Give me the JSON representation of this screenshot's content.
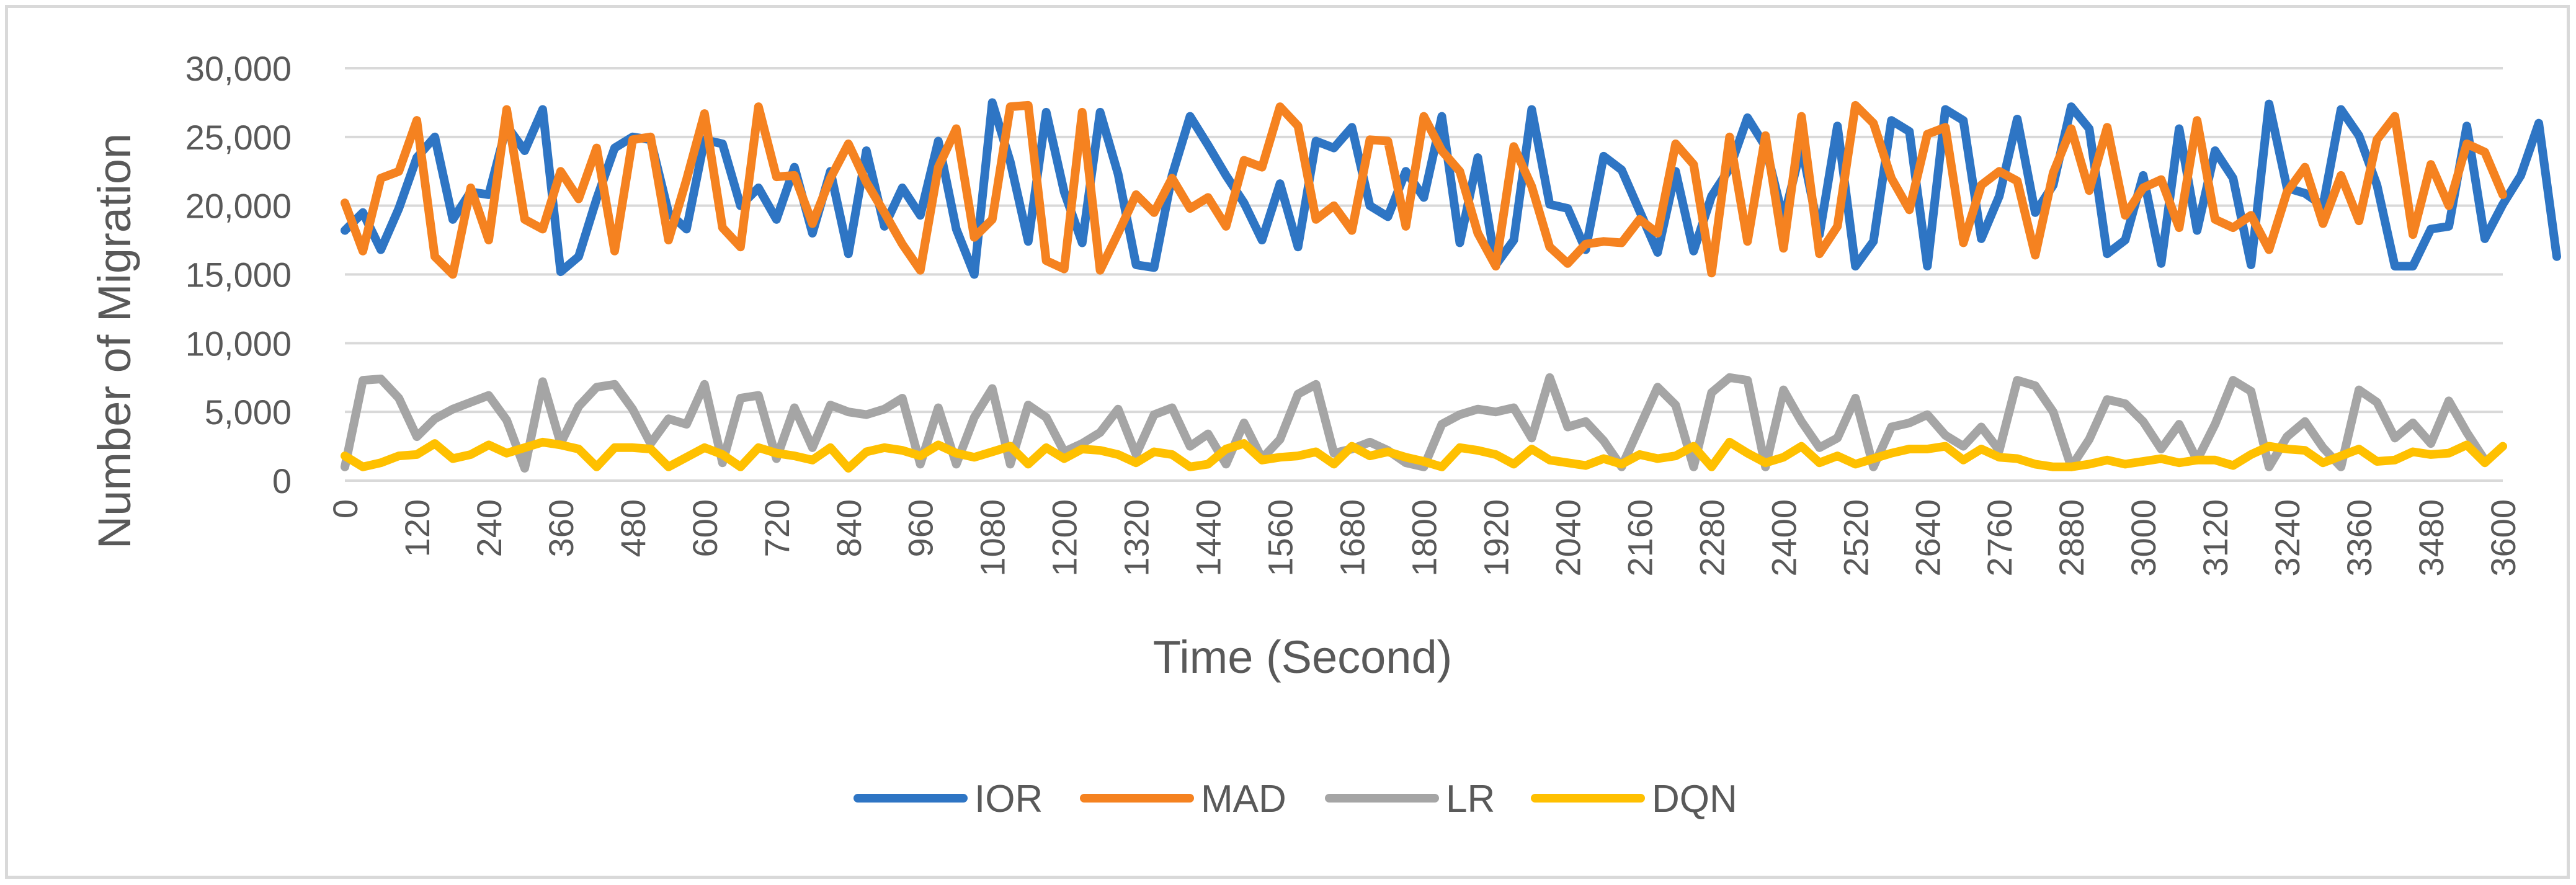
{
  "chart_data": {
    "type": "line",
    "title": "",
    "xlabel": "Time (Second)",
    "ylabel": "Number of Migration",
    "ylim": [
      0,
      30000
    ],
    "xlim": [
      0,
      3600
    ],
    "x_step": 30,
    "x_tick_step": 120,
    "y_ticks": [
      0,
      5000,
      10000,
      15000,
      20000,
      25000,
      30000
    ],
    "y_tick_labels": [
      "0",
      "5,000",
      "10,000",
      "15,000",
      "20,000",
      "25,000",
      "30,000"
    ],
    "x_tick_labels": [
      "0",
      "120",
      "240",
      "360",
      "480",
      "600",
      "720",
      "840",
      "960",
      "1080",
      "1200",
      "1320",
      "1440",
      "1560",
      "1680",
      "1800",
      "1920",
      "2040",
      "2160",
      "2280",
      "2400",
      "2520",
      "2640",
      "2760",
      "2880",
      "3000",
      "3120",
      "3240",
      "3360",
      "3480",
      "3600"
    ],
    "legend_position": "bottom",
    "grid": "horizontal",
    "series": [
      {
        "name": "IOR",
        "color": "#2e75c4",
        "values": [
          18200,
          19500,
          16800,
          19800,
          23500,
          25000,
          19000,
          21000,
          20800,
          25800,
          24000,
          27000,
          15200,
          16300,
          20500,
          24200,
          25000,
          24800,
          19500,
          18300,
          24800,
          24500,
          20000,
          21300,
          19000,
          22800,
          18000,
          22500,
          16500,
          24000,
          18500,
          21300,
          19300,
          24700,
          18300,
          15000,
          27500,
          23200,
          17400,
          26800,
          21000,
          17300,
          26800,
          22300,
          15700,
          15500,
          22200,
          26500,
          24400,
          22200,
          20200,
          17500,
          21600,
          17000,
          24700,
          24200,
          25700,
          20000,
          19200,
          22500,
          20600,
          26500,
          17300,
          23500,
          15700,
          17500,
          27000,
          20100,
          19800,
          16800,
          23600,
          22600,
          19600,
          16600,
          22500,
          16700,
          20700,
          22700,
          26400,
          24300,
          19000,
          24300,
          17900,
          25800,
          15600,
          17400,
          26200,
          25400,
          15600,
          27000,
          26200,
          17600,
          20700,
          26300,
          19500,
          21500,
          27200,
          25600,
          16500,
          17500,
          22200,
          15800,
          25600,
          18200,
          24000,
          22000,
          15700,
          27400,
          21300,
          20900,
          20000,
          27000,
          25100,
          21500,
          15600,
          15600,
          18300,
          18500,
          25800,
          17600,
          20100,
          22200,
          26000,
          16300
        ],
        "series_label": "IOR"
      },
      {
        "name": "MAD",
        "color": "#f58220",
        "values": [
          20200,
          16700,
          22000,
          22500,
          26200,
          16300,
          15000,
          21300,
          17500,
          27000,
          19000,
          18300,
          22500,
          20500,
          24200,
          16700,
          24800,
          25000,
          17500,
          21900,
          26700,
          18400,
          17000,
          27200,
          22100,
          22200,
          18700,
          22000,
          24500,
          21700,
          19500,
          17200,
          15300,
          22800,
          25600,
          17700,
          19000,
          27200,
          27300,
          16000,
          15400,
          26800,
          15300,
          18000,
          20800,
          19500,
          22000,
          19800,
          20600,
          18500,
          23300,
          22800,
          27200,
          25800,
          19000,
          20000,
          18200,
          24800,
          24700,
          18500,
          26500,
          24000,
          22500,
          18000,
          15600,
          24300,
          21400,
          17000,
          15800,
          17200,
          17400,
          17300,
          19000,
          18000,
          24500,
          23000,
          15100,
          25000,
          17400,
          25100,
          16900,
          26500,
          16500,
          18500,
          27300,
          26000,
          22000,
          19700,
          25200,
          25700,
          17300,
          21500,
          22500,
          21800,
          16400,
          22400,
          25600,
          21100,
          25700,
          19300,
          21300,
          21900,
          18400,
          26200,
          19000,
          18400,
          19300,
          16800,
          21000,
          22800,
          18700,
          22200,
          18900,
          24800,
          26500,
          17900,
          23000,
          20000,
          24500,
          23900,
          20800
        ],
        "series_label": "MAD"
      },
      {
        "name": "LR",
        "color": "#a5a5a5",
        "values": [
          1000,
          7300,
          7400,
          6000,
          3200,
          4500,
          5200,
          5700,
          6200,
          4400,
          900,
          7200,
          2700,
          5400,
          6800,
          7000,
          5200,
          2700,
          4500,
          4100,
          7000,
          1300,
          6000,
          6200,
          1600,
          5300,
          2400,
          5500,
          5000,
          4800,
          5200,
          6000,
          1200,
          5300,
          1200,
          4600,
          6700,
          1200,
          5500,
          4600,
          2100,
          2700,
          3500,
          5200,
          1900,
          4800,
          5300,
          2500,
          3400,
          1200,
          4200,
          1600,
          3000,
          6300,
          7000,
          2000,
          2300,
          2800,
          2200,
          1300,
          1000,
          4100,
          4800,
          5200,
          5000,
          5300,
          3100,
          7500,
          3900,
          4300,
          2900,
          1000,
          3900,
          6800,
          5500,
          1000,
          6400,
          7500,
          7300,
          1000,
          6600,
          4300,
          2400,
          3100,
          6000,
          1000,
          3900,
          4200,
          4800,
          3300,
          2500,
          3900,
          2200,
          7300,
          6900,
          5000,
          1000,
          3000,
          5900,
          5600,
          4300,
          2300,
          4100,
          1500,
          4100,
          7300,
          6500,
          1000,
          3200,
          4300,
          2400,
          1000,
          6600,
          5700,
          3100,
          4200,
          2700,
          5800,
          3500,
          1500
        ],
        "series_label": "LR"
      },
      {
        "name": "DQN",
        "color": "#ffc000",
        "values": [
          1800,
          1000,
          1300,
          1800,
          1900,
          2700,
          1600,
          1900,
          2600,
          2000,
          2400,
          2800,
          2600,
          2300,
          1000,
          2400,
          2400,
          2300,
          1000,
          1700,
          2400,
          1900,
          1000,
          2400,
          2000,
          1800,
          1500,
          2400,
          900,
          2100,
          2400,
          2200,
          1800,
          2600,
          2000,
          1700,
          2100,
          2500,
          1200,
          2400,
          1600,
          2300,
          2200,
          1900,
          1300,
          2100,
          1900,
          1000,
          1200,
          2300,
          2700,
          1500,
          1700,
          1800,
          2100,
          1200,
          2500,
          1800,
          2100,
          1700,
          1400,
          1000,
          2400,
          2200,
          1900,
          1200,
          2300,
          1500,
          1300,
          1100,
          1600,
          1200,
          1900,
          1600,
          1800,
          2500,
          1000,
          2800,
          2000,
          1300,
          1700,
          2500,
          1300,
          1800,
          1200,
          1600,
          2000,
          2300,
          2300,
          2500,
          1500,
          2300,
          1700,
          1600,
          1200,
          1000,
          1000,
          1200,
          1500,
          1200,
          1400,
          1600,
          1300,
          1500,
          1500,
          1100,
          1900,
          2500,
          2300,
          2200,
          1300,
          1800,
          2300,
          1400,
          1500,
          2100,
          1900,
          2000,
          2600,
          1300,
          2500
        ],
        "series_label": "DQN"
      }
    ]
  }
}
